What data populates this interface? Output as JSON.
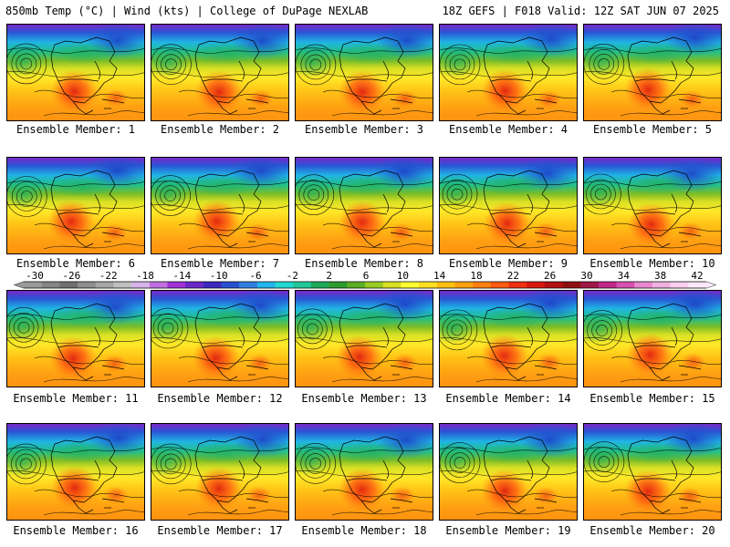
{
  "header": {
    "left": "850mb Temp (°C) | Wind (kts) | College of DuPage NEXLAB",
    "right": "18Z GEFS | F018 Valid: 12Z SAT JUN 07 2025"
  },
  "label_prefix": "Ensemble Member: ",
  "members": [
    1,
    2,
    3,
    4,
    5,
    6,
    7,
    8,
    9,
    10,
    11,
    12,
    13,
    14,
    15,
    16,
    17,
    18,
    19,
    20
  ],
  "colorbar": {
    "ticks": [
      "-30",
      "-26",
      "-22",
      "-18",
      "-14",
      "-10",
      "-6",
      "-2",
      "2",
      "6",
      "10",
      "14",
      "18",
      "22",
      "26",
      "30",
      "34",
      "38",
      "42"
    ],
    "colors": [
      "#9a9a9a",
      "#858585",
      "#707070",
      "#8e8e8e",
      "#a6a6a6",
      "#c0c0c0",
      "#d8b4ec",
      "#c070e0",
      "#a030d8",
      "#6a28c8",
      "#3c28c0",
      "#2850d0",
      "#2f80e0",
      "#22b4ec",
      "#20d8d0",
      "#22c89a",
      "#1eaa5a",
      "#2e9a2e",
      "#5caf24",
      "#98cc22",
      "#d8e022",
      "#ffff30",
      "#ffe020",
      "#ffc010",
      "#ffa010",
      "#ff8010",
      "#ff5a10",
      "#f03010",
      "#d81810",
      "#b41010",
      "#901010",
      "#a01848",
      "#c02888",
      "#d850b0",
      "#e888d0",
      "#f0b0e0",
      "#f8d0f0",
      "#fce8f8"
    ]
  }
}
